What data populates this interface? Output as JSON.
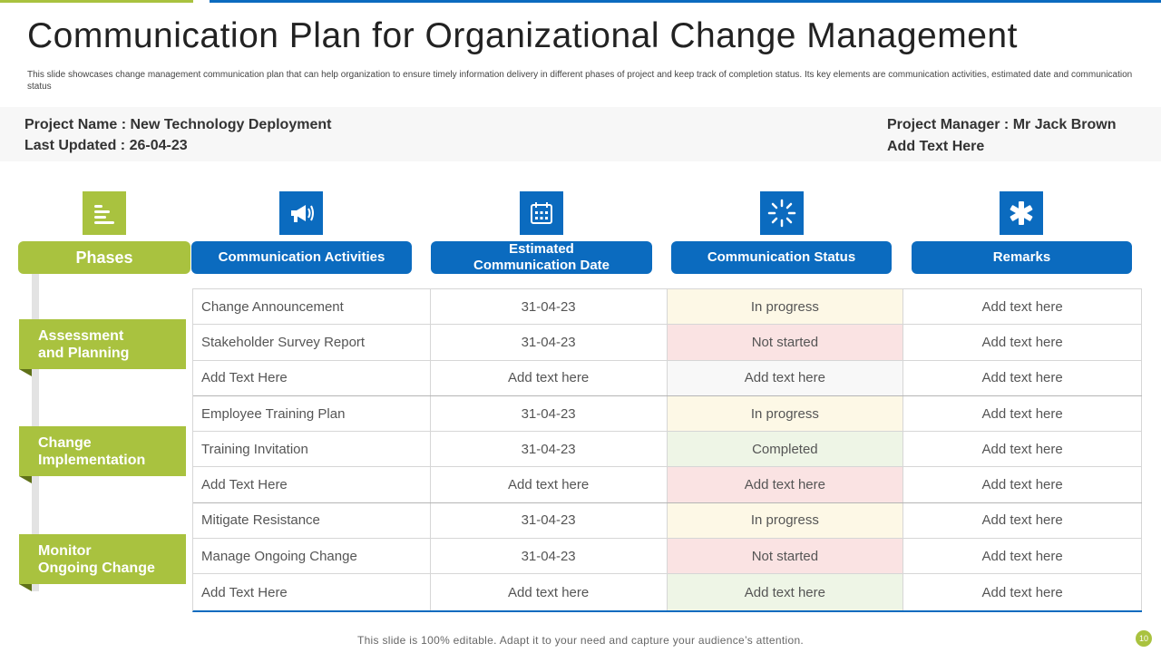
{
  "title": "Communication Plan for Organizational Change Management",
  "description": "This slide showcases change management communication plan that can help organization to ensure timely information delivery in different phases of project and keep track of completion status. Its key elements are communication activities, estimated date and communication status",
  "info": {
    "project_name": "Project Name : New Technology Deployment",
    "last_updated": "Last Updated : 26-04-23",
    "project_manager": "Project Manager : Mr Jack Brown",
    "extra": "Add Text Here"
  },
  "headers": {
    "phases": "Phases",
    "activities": "Communication Activities",
    "date_line1": "Estimated",
    "date_line2": "Communication Date",
    "status": "Communication Status",
    "remarks": "Remarks"
  },
  "icons": {
    "phases": "list-icon",
    "activities": "megaphone-icon",
    "date": "calendar-icon",
    "status": "loading-icon",
    "remarks": "asterisk-icon"
  },
  "phases": [
    {
      "line1": "Assessment",
      "line2": "and Planning"
    },
    {
      "line1": "Change",
      "line2": "Implementation"
    },
    {
      "line1": "Monitor",
      "line2": "Ongoing Change"
    }
  ],
  "status_colors": {
    "in_progress": "#fdf8e6",
    "not_started": "#fae3e3",
    "completed": "#eef5e6",
    "neutral": "#f8f8f8"
  },
  "rows": [
    {
      "activity": "Change Announcement",
      "date": "31-04-23",
      "status": "In progress",
      "remarks": "Add text here"
    },
    {
      "activity": "Stakeholder Survey Report",
      "date": "31-04-23",
      "status": "Not started",
      "remarks": "Add text here"
    },
    {
      "activity": "Add Text Here",
      "date": "Add text here",
      "status": "Add text here",
      "remarks": "Add text here"
    },
    {
      "activity": "Employee Training Plan",
      "date": "31-04-23",
      "status": "In progress",
      "remarks": "Add text here"
    },
    {
      "activity": "Training Invitation",
      "date": "31-04-23",
      "status": "Completed",
      "remarks": "Add text here"
    },
    {
      "activity": "Add Text Here",
      "date": "Add text here",
      "status": "Add text here",
      "remarks": "Add text here"
    },
    {
      "activity": "Mitigate Resistance",
      "date": "31-04-23",
      "status": "In progress",
      "remarks": "Add text here"
    },
    {
      "activity": "Manage Ongoing Change",
      "date": "31-04-23",
      "status": "Not started",
      "remarks": "Add text here"
    },
    {
      "activity": "Add Text Here",
      "date": "Add text here",
      "status": "Add text here",
      "remarks": "Add text here"
    }
  ],
  "footer": "This slide is 100% editable. Adapt it to your need and capture your audience’s attention.",
  "page_number": "10"
}
